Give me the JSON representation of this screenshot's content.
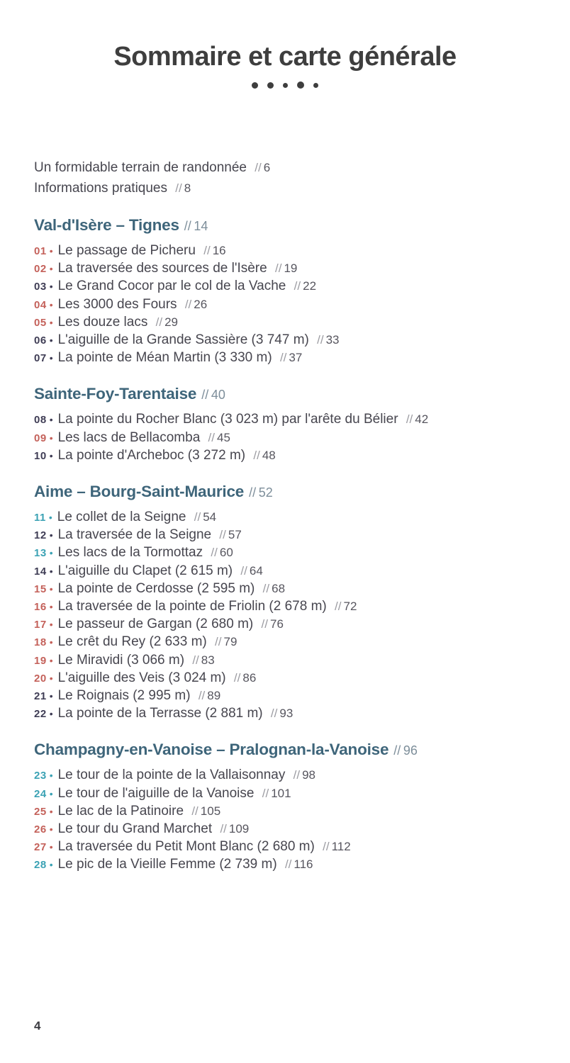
{
  "page": {
    "title": "Sommaire et carte générale",
    "separator": "//",
    "bullet": "•",
    "footer_page_number": "4"
  },
  "colors": {
    "title": "#3e3e3e",
    "heading": "#3e657a",
    "heading_ref": "#7d8e9a",
    "body": "#47464f",
    "ref_slash": "#9b9ba1",
    "ref_num": "#56555e",
    "red": "#c4615a",
    "teal": "#3ba2b4",
    "navy": "#3f3d55"
  },
  "intro": [
    {
      "label": "Un formidable terrain de randonnée",
      "page": "6"
    },
    {
      "label": "Informations pratiques",
      "page": "8"
    }
  ],
  "sections": [
    {
      "title": "Val-d'Isère – Tignes",
      "page": "14",
      "items": [
        {
          "num": "01",
          "color": "red",
          "label": "Le passage de Picheru",
          "page": "16"
        },
        {
          "num": "02",
          "color": "red",
          "label": "La traversée des sources de l'Isère",
          "page": "19"
        },
        {
          "num": "03",
          "color": "navy",
          "label": "Le Grand Cocor par le col de la Vache",
          "page": "22"
        },
        {
          "num": "04",
          "color": "red",
          "label": "Les 3000 des Fours",
          "page": "26"
        },
        {
          "num": "05",
          "color": "red",
          "label": "Les douze lacs",
          "page": "29"
        },
        {
          "num": "06",
          "color": "navy",
          "label": "L'aiguille de la Grande Sassière (3 747 m)",
          "page": "33"
        },
        {
          "num": "07",
          "color": "navy",
          "label": "La pointe de Méan Martin (3 330 m)",
          "page": "37"
        }
      ]
    },
    {
      "title": "Sainte-Foy-Tarentaise",
      "page": "40",
      "items": [
        {
          "num": "08",
          "color": "navy",
          "label": "La pointe du Rocher Blanc (3 023 m) par l'arête du Bélier",
          "page": "42"
        },
        {
          "num": "09",
          "color": "red",
          "label": "Les lacs de Bellacomba",
          "page": "45"
        },
        {
          "num": "10",
          "color": "navy",
          "label": "La pointe d'Archeboc (3 272 m)",
          "page": "48"
        }
      ]
    },
    {
      "title": "Aime – Bourg-Saint-Maurice",
      "page": "52",
      "items": [
        {
          "num": "11",
          "color": "teal",
          "label": "Le collet de la Seigne",
          "page": "54"
        },
        {
          "num": "12",
          "color": "navy",
          "label": "La traversée de la Seigne",
          "page": "57"
        },
        {
          "num": "13",
          "color": "teal",
          "label": "Les lacs de la Tormottaz",
          "page": "60"
        },
        {
          "num": "14",
          "color": "navy",
          "label": "L'aiguille du Clapet (2 615 m)",
          "page": "64"
        },
        {
          "num": "15",
          "color": "red",
          "label": "La pointe de Cerdosse (2 595 m)",
          "page": "68"
        },
        {
          "num": "16",
          "color": "red",
          "label": "La traversée de la pointe de Friolin (2 678 m)",
          "page": "72"
        },
        {
          "num": "17",
          "color": "red",
          "label": "Le passeur de Gargan (2 680 m)",
          "page": "76"
        },
        {
          "num": "18",
          "color": "red",
          "label": "Le crêt du Rey (2 633 m)",
          "page": "79"
        },
        {
          "num": "19",
          "color": "red",
          "label": "Le Miravidi (3 066 m)",
          "page": "83"
        },
        {
          "num": "20",
          "color": "red",
          "label": "L'aiguille des Veis (3 024 m)",
          "page": "86"
        },
        {
          "num": "21",
          "color": "navy",
          "label": "Le Roignais (2 995 m)",
          "page": "89"
        },
        {
          "num": "22",
          "color": "navy",
          "label": "La pointe de la Terrasse (2 881 m)",
          "page": "93"
        }
      ]
    },
    {
      "title": "Champagny-en-Vanoise – Pralognan-la-Vanoise",
      "page": "96",
      "items": [
        {
          "num": "23",
          "color": "teal",
          "label": "Le tour de la pointe de la Vallaisonnay",
          "page": "98"
        },
        {
          "num": "24",
          "color": "teal",
          "label": "Le tour de l'aiguille de la Vanoise",
          "page": "101"
        },
        {
          "num": "25",
          "color": "red",
          "label": "Le lac de la Patinoire",
          "page": "105"
        },
        {
          "num": "26",
          "color": "red",
          "label": "Le tour du Grand Marchet",
          "page": "109"
        },
        {
          "num": "27",
          "color": "red",
          "label": "La traversée du Petit Mont Blanc (2 680 m)",
          "page": "112"
        },
        {
          "num": "28",
          "color": "teal",
          "label": "Le pic de la Vieille Femme (2 739 m)",
          "page": "116"
        }
      ]
    }
  ]
}
